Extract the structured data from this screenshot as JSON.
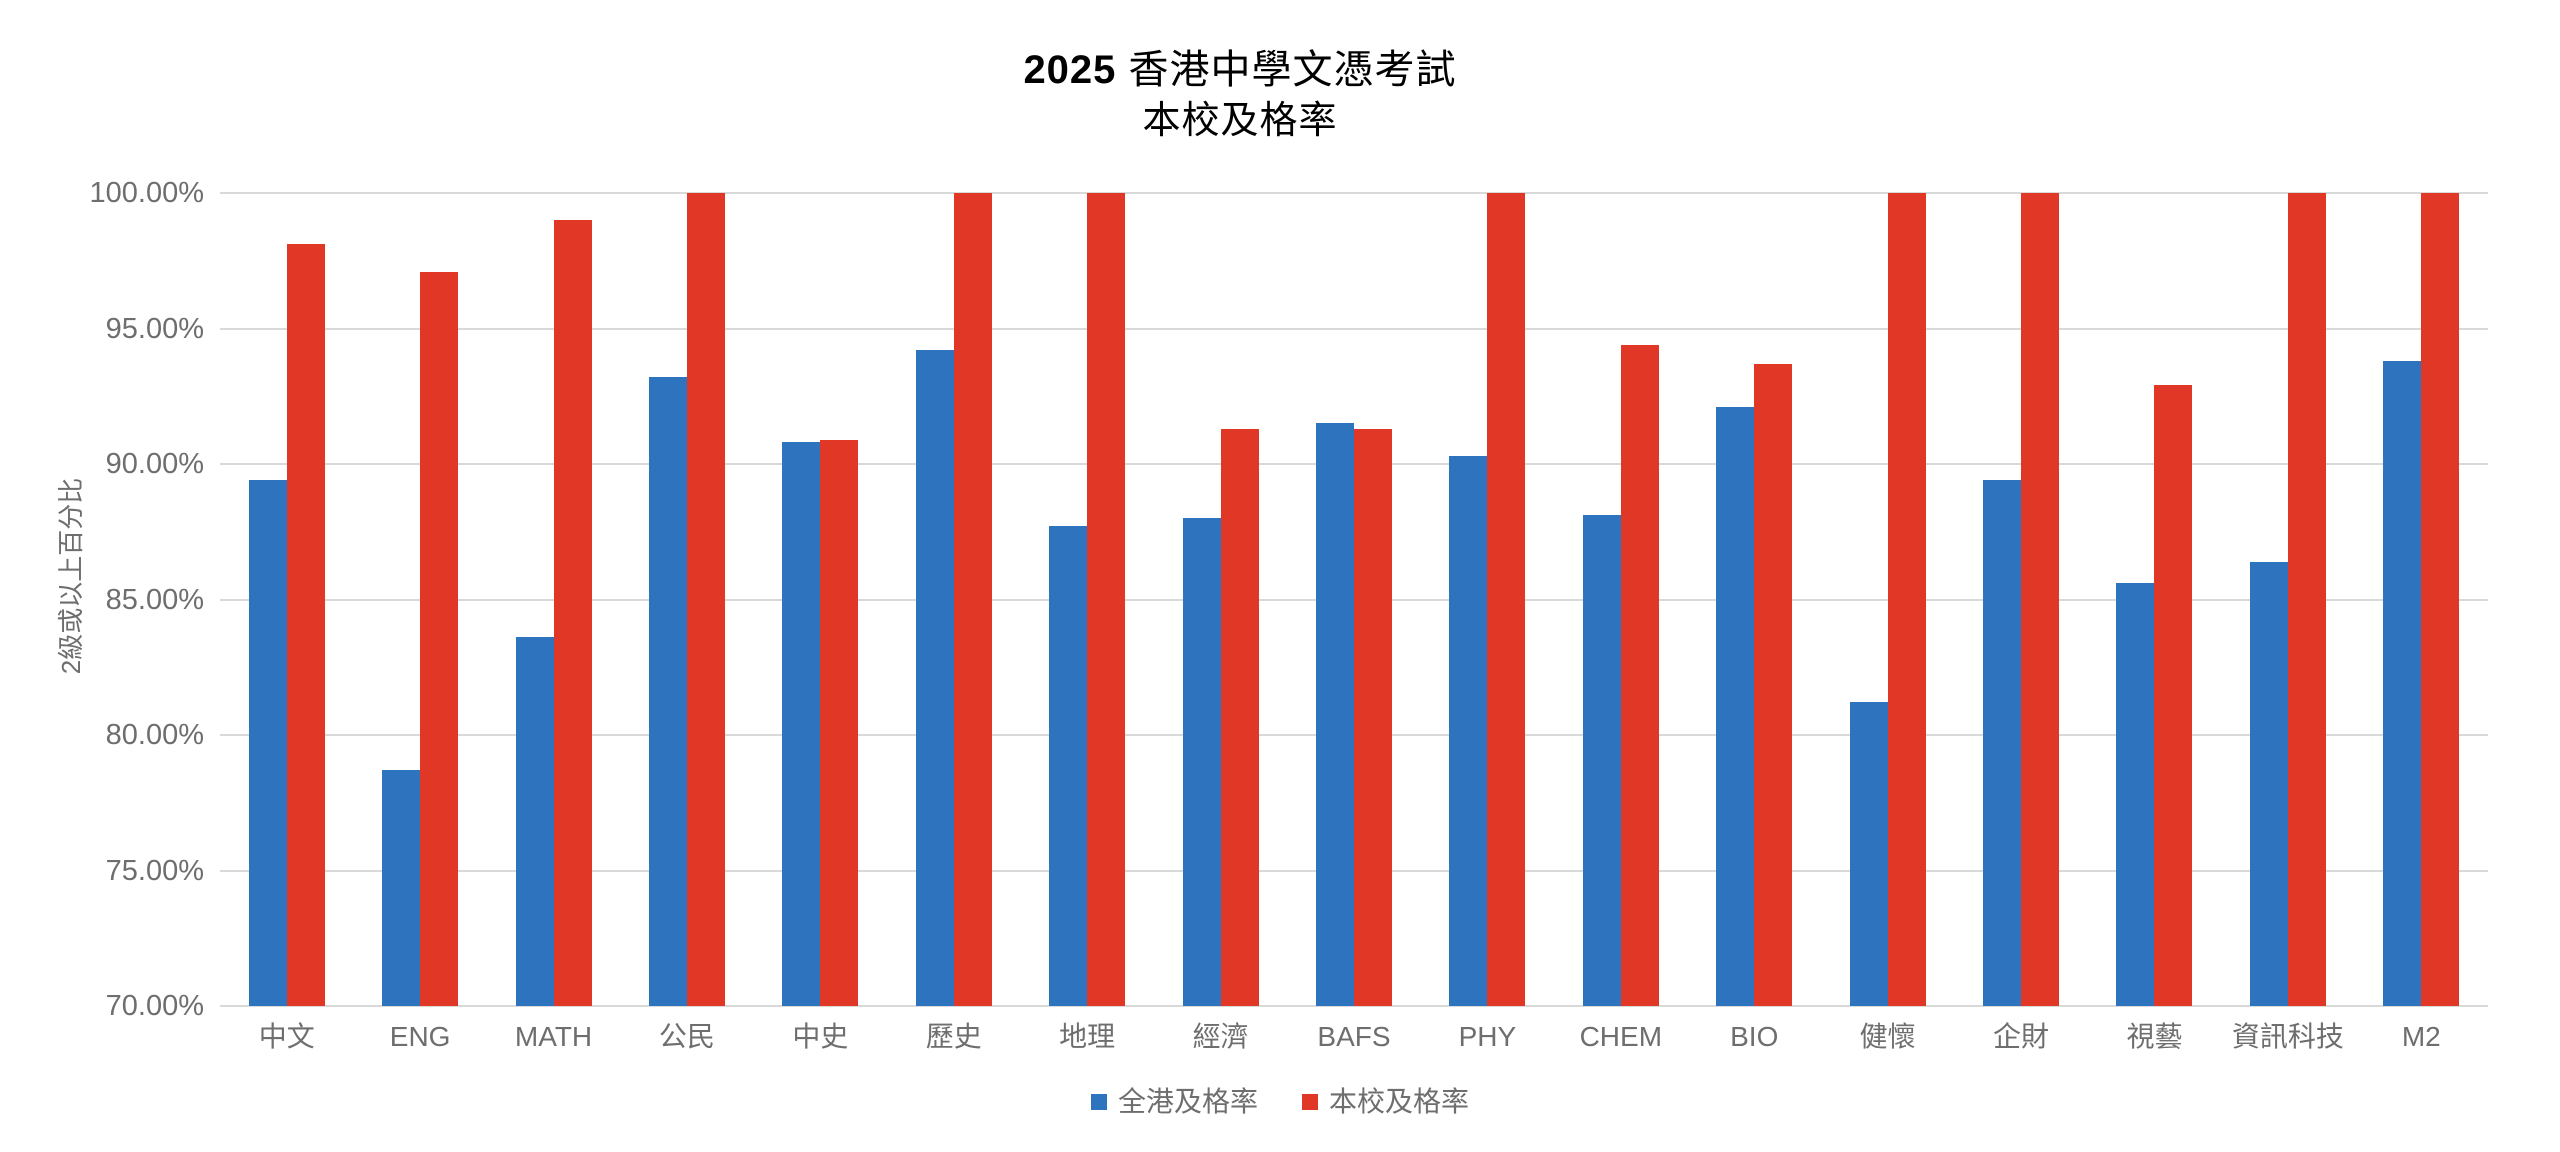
{
  "title": {
    "year": "2025",
    "line1": "香港中學文憑考試",
    "line2": "本校及格率"
  },
  "colors": {
    "series_blue": "#2E73BE",
    "series_red": "#E03726",
    "gridline": "#D9D9D9",
    "axis_text": "#6E6E6E",
    "title_text": "#000000",
    "background": "#FFFFFF"
  },
  "chart_data": {
    "type": "bar",
    "title": "2025 香港中學文憑考試",
    "subtitle": "本校及格率",
    "categories": [
      "中文",
      "ENG",
      "MATH",
      "公民",
      "中史",
      "歷史",
      "地理",
      "經濟",
      "BAFS",
      "PHY",
      "CHEM",
      "BIO",
      "健懷",
      "企財",
      "視藝",
      "資訊科技",
      "M2"
    ],
    "series": [
      {
        "name": "全港及格率",
        "color": "#2E73BE",
        "values": [
          89.4,
          78.7,
          83.6,
          93.2,
          90.8,
          94.2,
          87.7,
          88.0,
          91.5,
          90.3,
          88.1,
          92.1,
          81.2,
          89.4,
          85.6,
          86.4,
          93.8
        ]
      },
      {
        "name": "本校及格率",
        "color": "#E03726",
        "values": [
          98.1,
          97.1,
          99.0,
          100.0,
          90.9,
          100.0,
          100.0,
          91.3,
          91.3,
          100.0,
          94.4,
          93.7,
          100.0,
          100.0,
          92.9,
          100.0,
          100.0
        ]
      }
    ],
    "xlabel": "",
    "ylabel": "2級或以上百分比",
    "ylim": [
      70,
      100
    ],
    "y_tick_step": 5,
    "y_tick_labels": [
      "100.00%",
      "95.00%",
      "90.00%",
      "85.00%",
      "80.00%",
      "75.00%",
      "70.00%"
    ],
    "grid": true,
    "legend_position": "bottom"
  }
}
